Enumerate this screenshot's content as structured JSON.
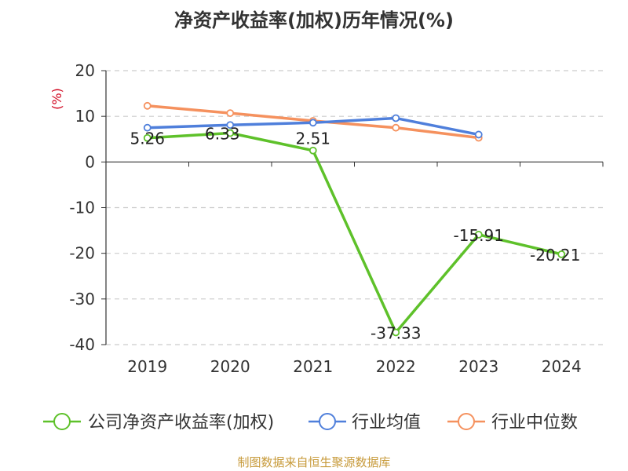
{
  "chart_data": {
    "type": "line",
    "title": "净资产收益率(加权)历年情况(%)",
    "ylabel": "(%)",
    "ylim": [
      -40,
      20
    ],
    "yticks": [
      20,
      10,
      0,
      -10,
      -20,
      -30,
      -40
    ],
    "categories": [
      "2019",
      "2020",
      "2021",
      "2022",
      "2023",
      "2024"
    ],
    "series": [
      {
        "name": "公司净资产收益率(加权)",
        "color": "#5ec12a",
        "values": [
          5.26,
          6.33,
          2.51,
          -37.33,
          -15.91,
          -20.21
        ],
        "labels": [
          "5.26",
          "6.33",
          "2.51",
          "-37.33",
          "-15.91",
          "-20.21"
        ]
      },
      {
        "name": "行业均值",
        "color": "#4f7fdb",
        "values": [
          7.5,
          8.1,
          8.6,
          9.6,
          6.0,
          null
        ]
      },
      {
        "name": "行业中位数",
        "color": "#f5915e",
        "values": [
          12.3,
          10.7,
          9.0,
          7.5,
          5.3,
          null
        ]
      }
    ],
    "grid": true,
    "legend": "bottom"
  },
  "source": "制图数据来自恒生聚源数据库"
}
